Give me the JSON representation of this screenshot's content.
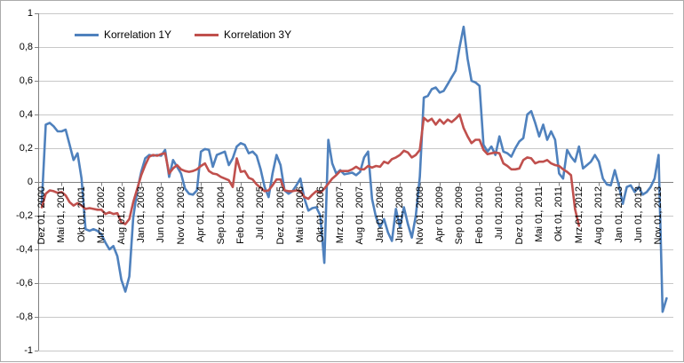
{
  "chart_data": {
    "type": "line",
    "title": "",
    "xlabel": "",
    "ylabel": "",
    "ylim": [
      -1,
      1
    ],
    "y_step": 0.2,
    "grid": "horizontal",
    "legend_position": "top",
    "y_tick_values": [
      1,
      0.8,
      0.6,
      0.4,
      0.2,
      0,
      -0.2,
      -0.4,
      -0.6,
      -0.8,
      -1
    ],
    "y_tick_labels": [
      "1",
      "0,8",
      "0,6",
      "0,4",
      "0,2",
      "0",
      "-0,2",
      "-0,4",
      "-0,6",
      "-0,8",
      "-1"
    ],
    "x_tick_every": 5,
    "x_tick_labels": [
      "Dez 01, 2000",
      "Mai 01, 2001",
      "Okt 01, 2001",
      "Mrz 01, 2002",
      "Aug 01, 2002",
      "Jan 01, 2003",
      "Jun 01, 2003",
      "Nov 01, 2003",
      "Apr 01, 2004",
      "Sep 01, 2004",
      "Feb 01, 2005",
      "Jul 01, 2005",
      "Dez 01, 2005",
      "Mai 01, 2006",
      "Okt 01, 2006",
      "Mrz 01, 2007",
      "Aug 01, 2007",
      "Jan 01, 2008",
      "Jun 01, 2008",
      "Nov 01, 2008",
      "Apr 01, 2009",
      "Sep 01, 2009",
      "Feb 01, 2010",
      "Jul 01, 2010",
      "Dez 01, 2010",
      "Mai 01, 2011",
      "Okt 01, 2011",
      "Mrz 01, 2012",
      "Aug 01, 2012",
      "Jan 01, 2013",
      "Jun 01, 2013",
      "Nov 01, 2013"
    ],
    "series": [
      {
        "name": "Korrelation 1Y",
        "color": "#4F81BD",
        "values": [
          -0.13,
          0.34,
          0.35,
          0.33,
          0.3,
          0.3,
          0.31,
          0.22,
          0.13,
          0.17,
          0.02,
          -0.28,
          -0.29,
          -0.28,
          -0.29,
          -0.31,
          -0.36,
          -0.4,
          -0.38,
          -0.44,
          -0.58,
          -0.65,
          -0.56,
          -0.21,
          -0.05,
          0.06,
          0.14,
          0.16,
          0.155,
          0.16,
          0.155,
          0.19,
          0.03,
          0.13,
          0.09,
          0.05,
          -0.04,
          -0.07,
          -0.075,
          -0.05,
          0.18,
          0.195,
          0.19,
          0.09,
          0.16,
          0.17,
          0.18,
          0.1,
          0.14,
          0.21,
          0.23,
          0.22,
          0.17,
          0.18,
          0.155,
          0.075,
          -0.03,
          -0.09,
          0.05,
          0.16,
          0.1,
          -0.05,
          -0.07,
          -0.055,
          -0.02,
          0.02,
          -0.1,
          -0.17,
          -0.155,
          -0.15,
          -0.2,
          -0.48,
          0.25,
          0.11,
          0.05,
          0.07,
          0.045,
          0.05,
          0.055,
          0.04,
          0.06,
          0.145,
          0.18,
          -0.1,
          -0.21,
          -0.27,
          -0.22,
          -0.3,
          -0.35,
          -0.16,
          -0.27,
          -0.15,
          -0.25,
          -0.33,
          -0.2,
          0.03,
          0.5,
          0.51,
          0.55,
          0.56,
          0.53,
          0.54,
          0.58,
          0.62,
          0.66,
          0.8,
          0.92,
          0.73,
          0.6,
          0.59,
          0.57,
          0.22,
          0.18,
          0.21,
          0.16,
          0.27,
          0.18,
          0.17,
          0.15,
          0.2,
          0.24,
          0.26,
          0.4,
          0.42,
          0.35,
          0.27,
          0.34,
          0.25,
          0.3,
          0.25,
          0.05,
          0.02,
          0.19,
          0.15,
          0.12,
          0.21,
          0.08,
          0.1,
          0.12,
          0.16,
          0.12,
          0.02,
          -0.015,
          -0.02,
          0.07,
          -0.02,
          -0.13,
          -0.03,
          -0.02,
          -0.06,
          -0.03,
          -0.075,
          -0.06,
          -0.03,
          0.02,
          0.16,
          -0.77,
          -0.69
        ]
      },
      {
        "name": "Korrelation 3Y",
        "color": "#C0504D",
        "values": [
          -0.15,
          -0.07,
          -0.05,
          -0.055,
          -0.065,
          -0.06,
          -0.08,
          -0.12,
          -0.14,
          -0.125,
          -0.14,
          -0.16,
          -0.155,
          -0.16,
          -0.165,
          -0.165,
          -0.19,
          -0.18,
          -0.19,
          -0.185,
          -0.24,
          -0.25,
          -0.22,
          -0.12,
          -0.04,
          0.04,
          0.1,
          0.15,
          0.16,
          0.155,
          0.165,
          0.17,
          0.05,
          0.08,
          0.1,
          0.075,
          0.065,
          0.06,
          0.065,
          0.075,
          0.095,
          0.11,
          0.065,
          0.05,
          0.045,
          0.03,
          0.02,
          0.01,
          -0.03,
          0.14,
          0.06,
          0.065,
          0.025,
          0.015,
          -0.015,
          -0.035,
          -0.055,
          -0.05,
          -0.02,
          0.015,
          0.015,
          -0.05,
          -0.055,
          -0.055,
          -0.05,
          -0.055,
          -0.09,
          -0.1,
          -0.075,
          -0.055,
          -0.065,
          -0.04,
          -0.01,
          0.02,
          0.04,
          0.065,
          0.065,
          0.065,
          0.075,
          0.09,
          0.075,
          0.075,
          0.095,
          0.085,
          0.095,
          0.09,
          0.12,
          0.11,
          0.135,
          0.145,
          0.16,
          0.185,
          0.175,
          0.145,
          0.16,
          0.19,
          0.38,
          0.36,
          0.375,
          0.34,
          0.37,
          0.345,
          0.37,
          0.355,
          0.375,
          0.4,
          0.32,
          0.27,
          0.23,
          0.25,
          0.25,
          0.19,
          0.165,
          0.17,
          0.175,
          0.17,
          0.11,
          0.095,
          0.075,
          0.075,
          0.08,
          0.13,
          0.145,
          0.14,
          0.11,
          0.12,
          0.12,
          0.13,
          0.11,
          0.1,
          0.095,
          0.075,
          0.06,
          0.04,
          -0.16,
          -0.26
        ]
      }
    ],
    "colors": {
      "gridline": "#C8C8C8",
      "axis": "#808080",
      "text": "#000000",
      "background": "#FFFFFF",
      "frame_border": "#ABABAB"
    }
  }
}
